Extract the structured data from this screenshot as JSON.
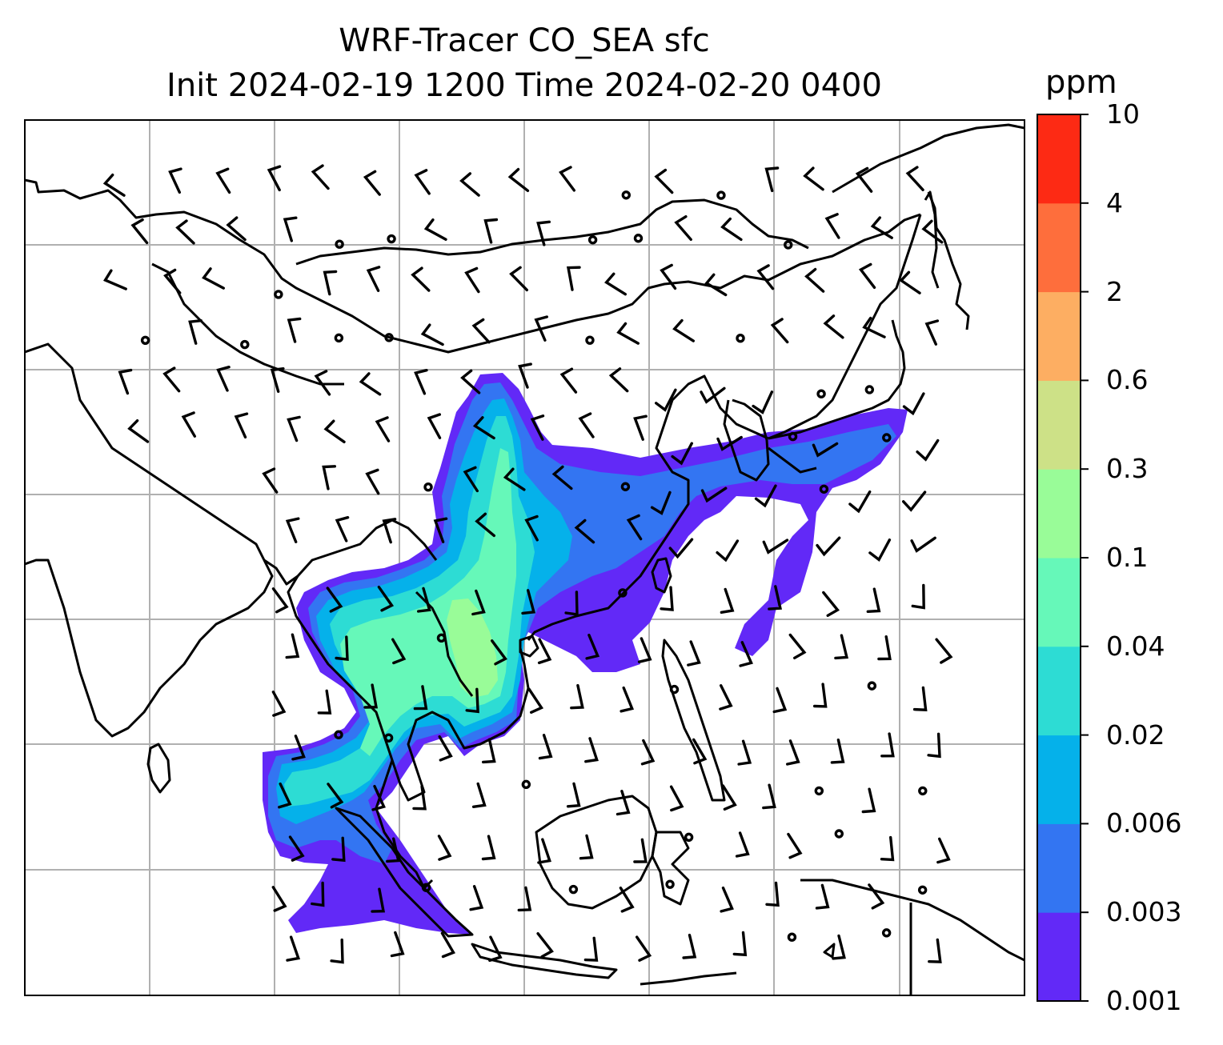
{
  "title": {
    "line1": "WRF-Tracer CO_SEA sfc",
    "line2": "Init 2024-02-19 1200 Time 2024-02-20 0400"
  },
  "colorbar": {
    "unit": "ppm",
    "levels": [
      "0.001",
      "0.003",
      "0.006",
      "0.02",
      "0.04",
      "0.1",
      "0.3",
      "0.6",
      "2",
      "4",
      "10"
    ],
    "colors": [
      "#6229f7",
      "#3375f2",
      "#05b1ea",
      "#2ddcd4",
      "#66f8b9",
      "#99fc98",
      "#cde187",
      "#fdae62",
      "#fe6e3c",
      "#fd2a14"
    ]
  },
  "map": {
    "coastline_color": "#000000",
    "gridline_color": "#b0b0b0",
    "barb_color": "#000000"
  }
}
